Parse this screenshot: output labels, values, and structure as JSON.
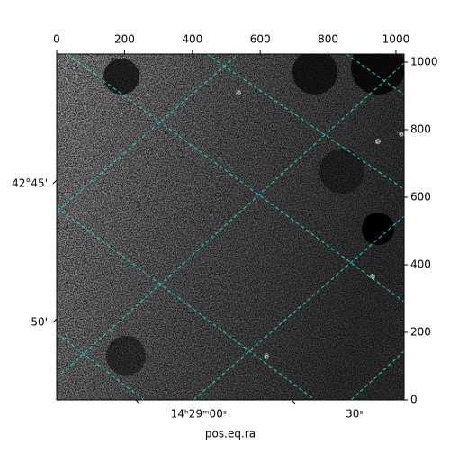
{
  "chart_data": {
    "type": "image",
    "x_label": "pos.eq.ra",
    "xlim": [
      0,
      1024
    ],
    "xticks": [
      0,
      200,
      400,
      600,
      800,
      1000
    ],
    "ylim": [
      0,
      1024
    ],
    "yticks": [
      0,
      200,
      400,
      600,
      800,
      1000
    ],
    "world_xticks": [
      "14ʰ29ᵐ00ˢ",
      "30ˢ"
    ],
    "world_yticks": [
      "42°45'",
      "50'"
    ]
  }
}
